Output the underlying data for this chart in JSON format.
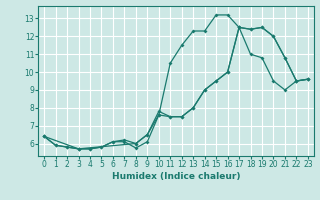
{
  "xlabel": "Humidex (Indice chaleur)",
  "background_color": "#cde8e5",
  "grid_color": "#ffffff",
  "line_color": "#1a7a6e",
  "xlim": [
    -0.5,
    23.5
  ],
  "ylim": [
    5.3,
    13.7
  ],
  "xticks": [
    0,
    1,
    2,
    3,
    4,
    5,
    6,
    7,
    8,
    9,
    10,
    11,
    12,
    13,
    14,
    15,
    16,
    17,
    18,
    19,
    20,
    21,
    22,
    23
  ],
  "yticks": [
    6,
    7,
    8,
    9,
    10,
    11,
    12,
    13
  ],
  "line1_x": [
    0,
    1,
    2,
    3,
    4,
    5,
    6,
    7,
    8,
    9,
    10,
    11,
    12,
    13,
    14,
    15,
    16,
    17,
    18,
    19,
    20,
    21,
    22,
    23
  ],
  "line1_y": [
    6.4,
    5.9,
    5.8,
    5.7,
    5.7,
    5.8,
    6.1,
    6.1,
    5.75,
    6.1,
    7.6,
    10.5,
    11.5,
    12.3,
    12.3,
    13.2,
    13.2,
    12.5,
    11.0,
    10.8,
    9.5,
    9.0,
    9.5,
    9.6
  ],
  "line2_x": [
    0,
    1,
    2,
    3,
    4,
    5,
    6,
    7,
    8,
    9,
    10,
    11,
    12,
    13,
    14,
    15,
    16,
    17,
    18,
    19,
    20,
    21,
    22,
    23
  ],
  "line2_y": [
    6.4,
    5.9,
    5.8,
    5.7,
    5.7,
    5.8,
    6.1,
    6.2,
    6.0,
    6.5,
    7.8,
    7.5,
    7.5,
    8.0,
    9.0,
    9.5,
    10.0,
    12.5,
    12.4,
    12.5,
    12.0,
    10.8,
    9.5,
    9.6
  ],
  "line3_x": [
    0,
    3,
    8,
    9,
    10,
    11,
    12,
    13,
    14,
    15,
    16,
    17,
    18,
    19,
    20,
    21,
    22,
    23
  ],
  "line3_y": [
    6.4,
    5.7,
    6.0,
    6.5,
    7.6,
    7.5,
    7.5,
    8.0,
    9.0,
    9.5,
    10.0,
    12.5,
    12.4,
    12.5,
    12.0,
    10.8,
    9.5,
    9.6
  ],
  "tick_labelsize": 5.5,
  "xlabel_fontsize": 6.5,
  "lw": 0.9,
  "ms": 2.0
}
